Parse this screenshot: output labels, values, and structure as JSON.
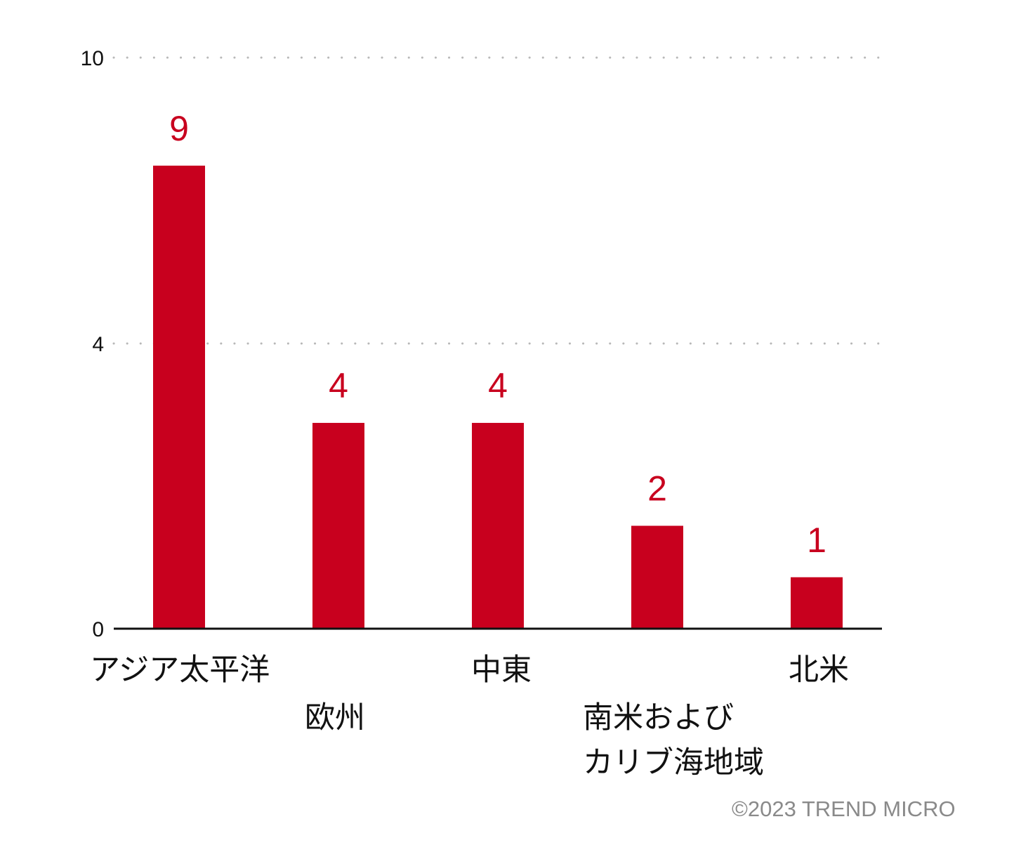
{
  "chart_data": {
    "type": "bar",
    "title": "",
    "xlabel": "",
    "ylabel": "",
    "categories": [
      [
        "アジア太平洋"
      ],
      [
        "欧州"
      ],
      [
        "中東"
      ],
      [
        "南米および",
        "カリブ海地域"
      ],
      [
        "北米"
      ]
    ],
    "values": [
      9,
      4,
      4,
      2,
      1
    ],
    "data_labels": [
      "9",
      "4",
      "4",
      "2",
      "1"
    ],
    "yticks": [
      0,
      4,
      10
    ],
    "ytick_labels": [
      "0",
      "4",
      "10"
    ],
    "grid": true,
    "grid_style": "dotted",
    "legend": "none"
  },
  "colors": {
    "bar": "#c8001e",
    "value_label": "#c8001e",
    "axis": "#111111",
    "grid": "#b8b8b8",
    "copyright": "#8a8a8a"
  },
  "footer": {
    "copyright": "©2023 TREND MICRO"
  }
}
